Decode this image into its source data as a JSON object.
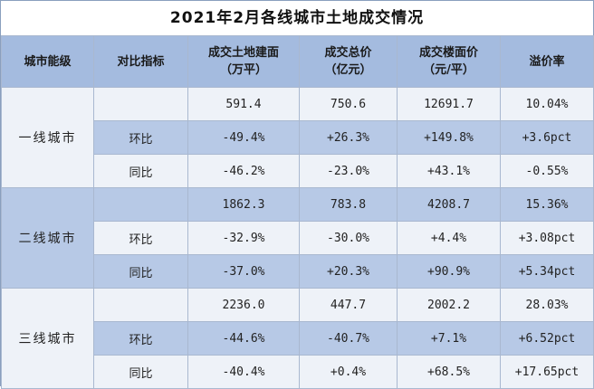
{
  "title": "2021年2月各线城市土地成交情况",
  "headers": [
    {
      "l1": "城市能级",
      "l2": ""
    },
    {
      "l1": "对比指标",
      "l2": ""
    },
    {
      "l1": "成交土地建面",
      "l2": "（万平）"
    },
    {
      "l1": "成交总价",
      "l2": "（亿元）"
    },
    {
      "l1": "成交楼面价",
      "l2": "（元/平）"
    },
    {
      "l1": "溢价率",
      "l2": ""
    }
  ],
  "groups": [
    {
      "tier": "一线城市",
      "rows": [
        {
          "label": "",
          "values": [
            "591.4",
            "750.6",
            "12691.7",
            "10.04%"
          ]
        },
        {
          "label": "环比",
          "values": [
            "-49.4%",
            "+26.3%",
            "+149.8%",
            "+3.6pct"
          ]
        },
        {
          "label": "同比",
          "values": [
            "-46.2%",
            "-23.0%",
            "+43.1%",
            "-0.55%"
          ]
        }
      ]
    },
    {
      "tier": "二线城市",
      "rows": [
        {
          "label": "",
          "values": [
            "1862.3",
            "783.8",
            "4208.7",
            "15.36%"
          ]
        },
        {
          "label": "环比",
          "values": [
            "-32.9%",
            "-30.0%",
            "+4.4%",
            "+3.08pct"
          ]
        },
        {
          "label": "同比",
          "values": [
            "-37.0%",
            "+20.3%",
            "+90.9%",
            "+5.34pct"
          ]
        }
      ]
    },
    {
      "tier": "三线城市",
      "rows": [
        {
          "label": "",
          "values": [
            "2236.0",
            "447.7",
            "2002.2",
            "28.03%"
          ]
        },
        {
          "label": "环比",
          "values": [
            "-44.6%",
            "-40.7%",
            "+7.1%",
            "+6.52pct"
          ]
        },
        {
          "label": "同比",
          "values": [
            "-40.4%",
            "+0.4%",
            "+68.5%",
            "+17.65pct"
          ]
        }
      ]
    }
  ],
  "colors": {
    "header_bg": "#a4bbdf",
    "light_row": "#eef2f8",
    "shaded_row": "#b7c9e6",
    "border": "#a9b8d0"
  }
}
